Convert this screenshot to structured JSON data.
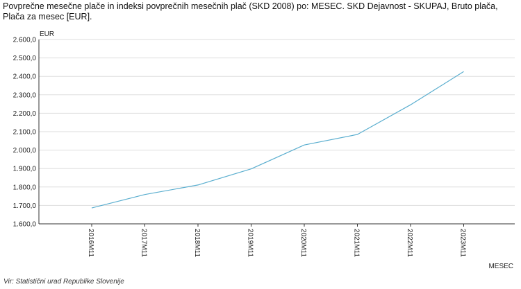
{
  "title": "Povprečne mesečne plače in indeksi povprečnih mesečnih plač (SKD 2008) po: MESEC. SKD Dejavnost - SKUPAJ, Bruto plača, Plača za mesec [EUR].",
  "source": "Vir: Statistični urad Republike Slovenije",
  "chart_data": {
    "type": "line",
    "x": [
      "2016M11",
      "2017M11",
      "2018M11",
      "2019M11",
      "2020M11",
      "2021M11",
      "2022M11",
      "2023M11"
    ],
    "series": [
      {
        "values": [
          1686,
          1759,
          1811,
          1898,
          2028,
          2085,
          2246,
          2426
        ],
        "color": "#5aaecf"
      }
    ],
    "ylabel": "EUR",
    "xlabel": "MESEC",
    "ylim": [
      1600,
      2600
    ],
    "yticks": [
      1600,
      1700,
      1800,
      1900,
      2000,
      2100,
      2200,
      2300,
      2400,
      2500,
      2600
    ],
    "ytick_labels": [
      "1.600,0",
      "1.700,0",
      "1.800,0",
      "1.900,0",
      "2.000,0",
      "2.100,0",
      "2.200,0",
      "2.300,0",
      "2.400,0",
      "2.500,0",
      "2.600,0"
    ],
    "grid": true,
    "gridline_color": "#dddddd",
    "axis_color": "#333333"
  }
}
